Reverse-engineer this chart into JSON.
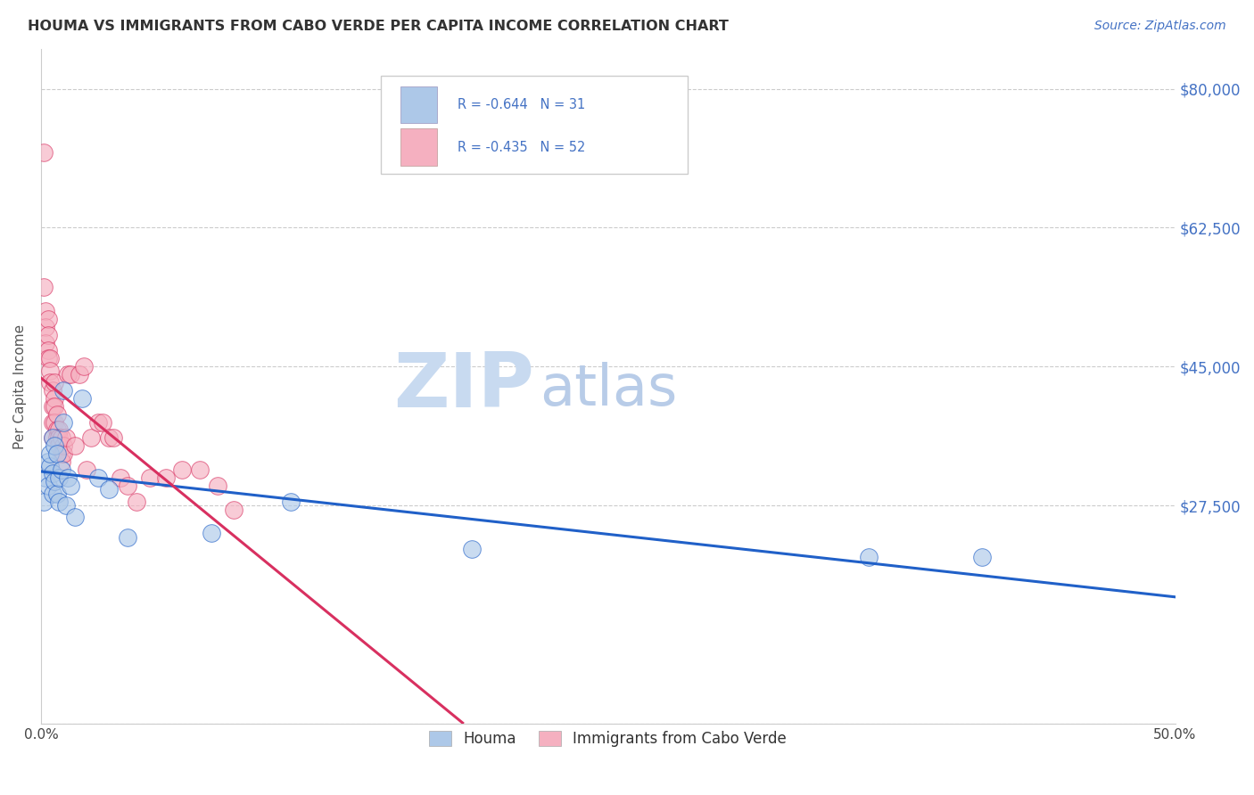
{
  "title": "HOUMA VS IMMIGRANTS FROM CABO VERDE PER CAPITA INCOME CORRELATION CHART",
  "source": "Source: ZipAtlas.com",
  "ylabel": "Per Capita Income",
  "yticks": [
    0,
    27500,
    45000,
    62500,
    80000
  ],
  "ytick_labels": [
    "",
    "$27,500",
    "$45,000",
    "$62,500",
    "$80,000"
  ],
  "xlim": [
    0.0,
    0.5
  ],
  "ylim": [
    0,
    85000
  ],
  "houma_color": "#adc8e8",
  "cabo_color": "#f5b0c0",
  "trendline_houma_color": "#2060c8",
  "trendline_cabo_color": "#d83060",
  "background_color": "#ffffff",
  "houma_label": "Houma",
  "cabo_label": "Immigrants from Cabo Verde",
  "houma_x": [
    0.001,
    0.002,
    0.003,
    0.003,
    0.004,
    0.004,
    0.005,
    0.005,
    0.005,
    0.006,
    0.006,
    0.007,
    0.007,
    0.008,
    0.008,
    0.009,
    0.01,
    0.01,
    0.011,
    0.012,
    0.013,
    0.015,
    0.018,
    0.025,
    0.03,
    0.038,
    0.075,
    0.11,
    0.19,
    0.365,
    0.415
  ],
  "houma_y": [
    28000,
    31000,
    30000,
    33000,
    32500,
    34000,
    36000,
    31500,
    29000,
    35000,
    30500,
    34000,
    29000,
    31000,
    28000,
    32000,
    42000,
    38000,
    27500,
    31000,
    30000,
    26000,
    41000,
    31000,
    29500,
    23500,
    24000,
    28000,
    22000,
    21000,
    21000
  ],
  "cabo_x": [
    0.001,
    0.001,
    0.002,
    0.002,
    0.002,
    0.003,
    0.003,
    0.003,
    0.003,
    0.004,
    0.004,
    0.004,
    0.005,
    0.005,
    0.005,
    0.005,
    0.006,
    0.006,
    0.006,
    0.006,
    0.007,
    0.007,
    0.007,
    0.008,
    0.008,
    0.008,
    0.009,
    0.009,
    0.009,
    0.01,
    0.01,
    0.011,
    0.012,
    0.013,
    0.015,
    0.017,
    0.019,
    0.02,
    0.022,
    0.025,
    0.027,
    0.03,
    0.032,
    0.035,
    0.038,
    0.042,
    0.048,
    0.055,
    0.062,
    0.07,
    0.078,
    0.085
  ],
  "cabo_y": [
    72000,
    55000,
    52000,
    50000,
    48000,
    51000,
    49000,
    47000,
    46000,
    46000,
    44500,
    43000,
    42000,
    40000,
    38000,
    36000,
    43000,
    41000,
    40000,
    38000,
    39000,
    37000,
    36000,
    37000,
    36000,
    35000,
    36000,
    34000,
    33000,
    35000,
    34000,
    36000,
    44000,
    44000,
    35000,
    44000,
    45000,
    32000,
    36000,
    38000,
    38000,
    36000,
    36000,
    31000,
    30000,
    28000,
    31000,
    31000,
    32000,
    32000,
    30000,
    27000
  ]
}
